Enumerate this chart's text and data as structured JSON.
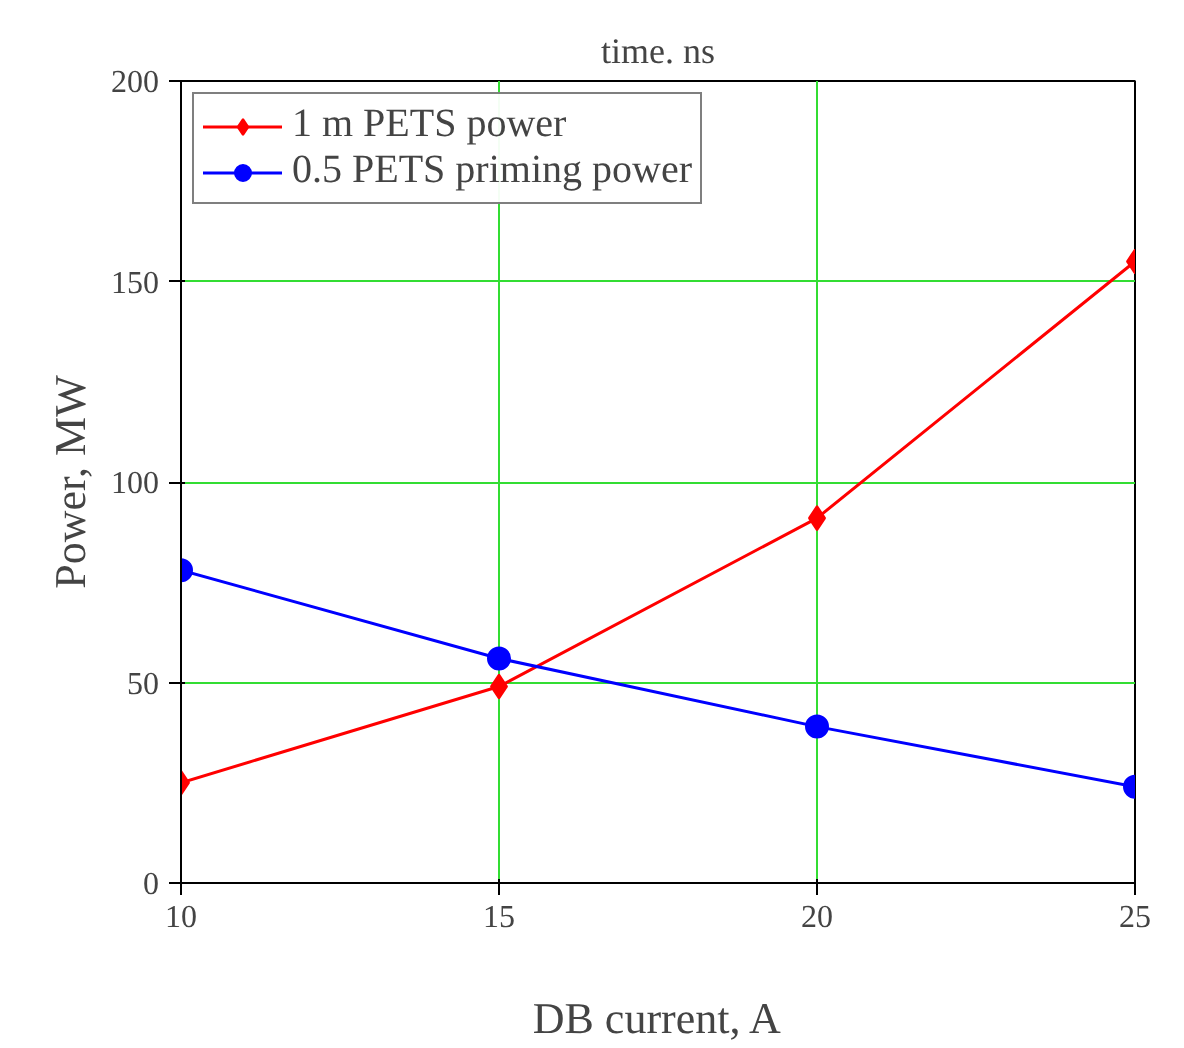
{
  "chart_data": {
    "type": "line",
    "title": "time. ns",
    "xlabel": "DB current, A",
    "ylabel": "Power, MW",
    "x": [
      10,
      15,
      20,
      25
    ],
    "series": [
      {
        "name": "1 m PETS power",
        "color": "#ff0000",
        "marker": "diamond",
        "values": [
          25,
          49,
          91,
          155
        ]
      },
      {
        "name": "0.5 PETS priming power",
        "color": "#0000ff",
        "marker": "circle",
        "values": [
          78,
          56,
          39,
          24
        ]
      }
    ],
    "xlim": [
      10,
      25
    ],
    "ylim": [
      0,
      200
    ],
    "xticks": [
      10,
      15,
      20,
      25
    ],
    "yticks": [
      0,
      50,
      100,
      150,
      200
    ],
    "grid": true,
    "legend": "top left",
    "line_style": "solid"
  }
}
